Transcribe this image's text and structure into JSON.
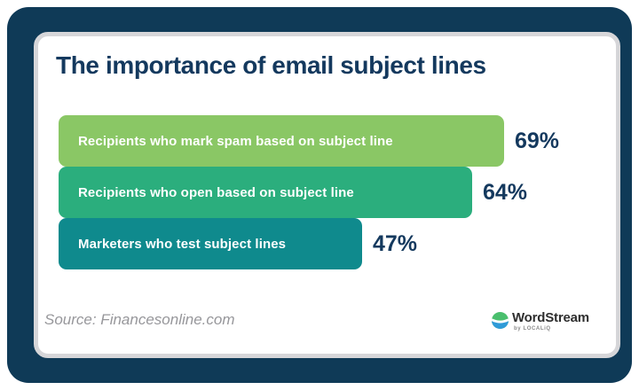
{
  "title": "The importance of email subject lines",
  "colors": {
    "frame_navy": "#0F3A57",
    "card_border": "#D6D6D9",
    "text_navy": "#14395E",
    "bar_label_text": "#FFFFFF",
    "source_gray": "#97979B"
  },
  "chart_data": {
    "type": "bar",
    "orientation": "horizontal",
    "title": "The importance of email subject lines",
    "categories": [
      "Recipients who mark spam based on subject line",
      "Recipients who open based on subject line",
      "Marketers who test subject lines"
    ],
    "values": [
      69,
      64,
      47
    ],
    "value_labels": [
      "69%",
      "64%",
      "47%"
    ],
    "bar_colors": [
      "#8AC765",
      "#2BAE7D",
      "#0F8A8D"
    ],
    "xlim": [
      0,
      100
    ],
    "value_suffix": "%",
    "grid": false,
    "legend": false
  },
  "footer": {
    "source": "Source: Financesonline.com",
    "logo": {
      "brand": "WordStream",
      "byline": "by LOCALiQ",
      "icon": "wordstream-wave-icon",
      "icon_green": "#4ABF6D",
      "icon_blue": "#2F9BD8",
      "icon_wave": "#FFFFFF"
    }
  }
}
